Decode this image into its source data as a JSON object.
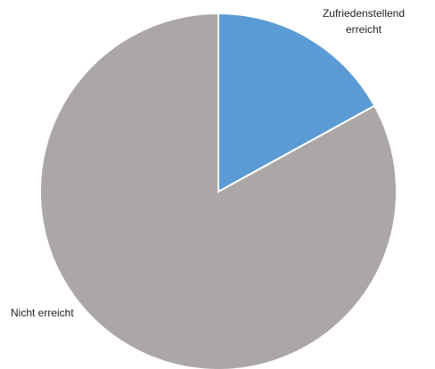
{
  "chart_data": {
    "type": "pie",
    "categories": [
      "Zufriedenstellend erreicht",
      "Nicht erreicht"
    ],
    "values": [
      17,
      83
    ],
    "colors": [
      "#5b9bd5",
      "#aba7a6"
    ]
  }
}
